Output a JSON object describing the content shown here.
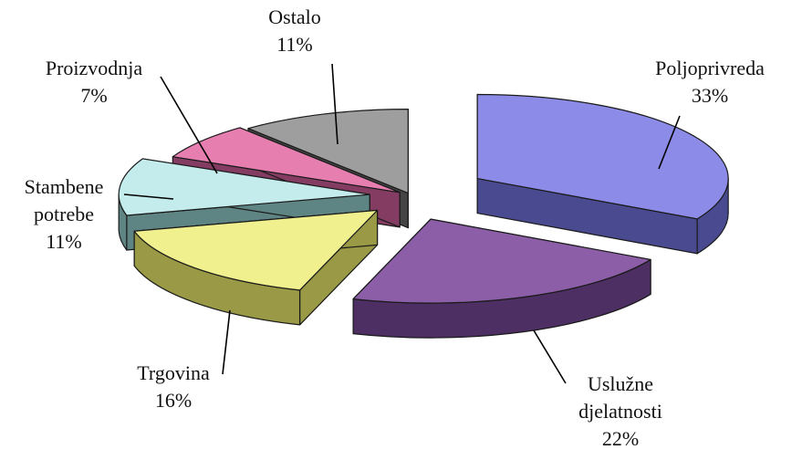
{
  "chart_data": {
    "type": "pie",
    "style": "3d-exploded",
    "legend": "none",
    "slices": [
      {
        "label": "Poljoprivreda",
        "lines": [
          "Poljoprivreda"
        ],
        "value": 33,
        "value_label": "33%",
        "color": "#8c8ce8",
        "side": "#4a4a90"
      },
      {
        "label": "Uslužne djelatnosti",
        "lines": [
          "Uslužne",
          "djelatnosti"
        ],
        "value": 22,
        "value_label": "22%",
        "color": "#8c5ea8",
        "side": "#4e2f64"
      },
      {
        "label": "Trgovina",
        "lines": [
          "Trgovina"
        ],
        "value": 16,
        "value_label": "16%",
        "color": "#f0f08e",
        "side": "#9a9a46"
      },
      {
        "label": "Stambene potrebe",
        "lines": [
          "Stambene",
          "potrebe"
        ],
        "value": 11,
        "value_label": "11%",
        "color": "#c4ecec",
        "side": "#5f8484"
      },
      {
        "label": "Proizvodnja",
        "lines": [
          "Proizvodnja"
        ],
        "value": 7,
        "value_label": "7%",
        "color": "#e67fb0",
        "side": "#843c62"
      },
      {
        "label": "Ostalo",
        "lines": [
          "Ostalo"
        ],
        "value": 11,
        "value_label": "11%",
        "color": "#9e9e9e",
        "side": "#454545"
      }
    ]
  }
}
